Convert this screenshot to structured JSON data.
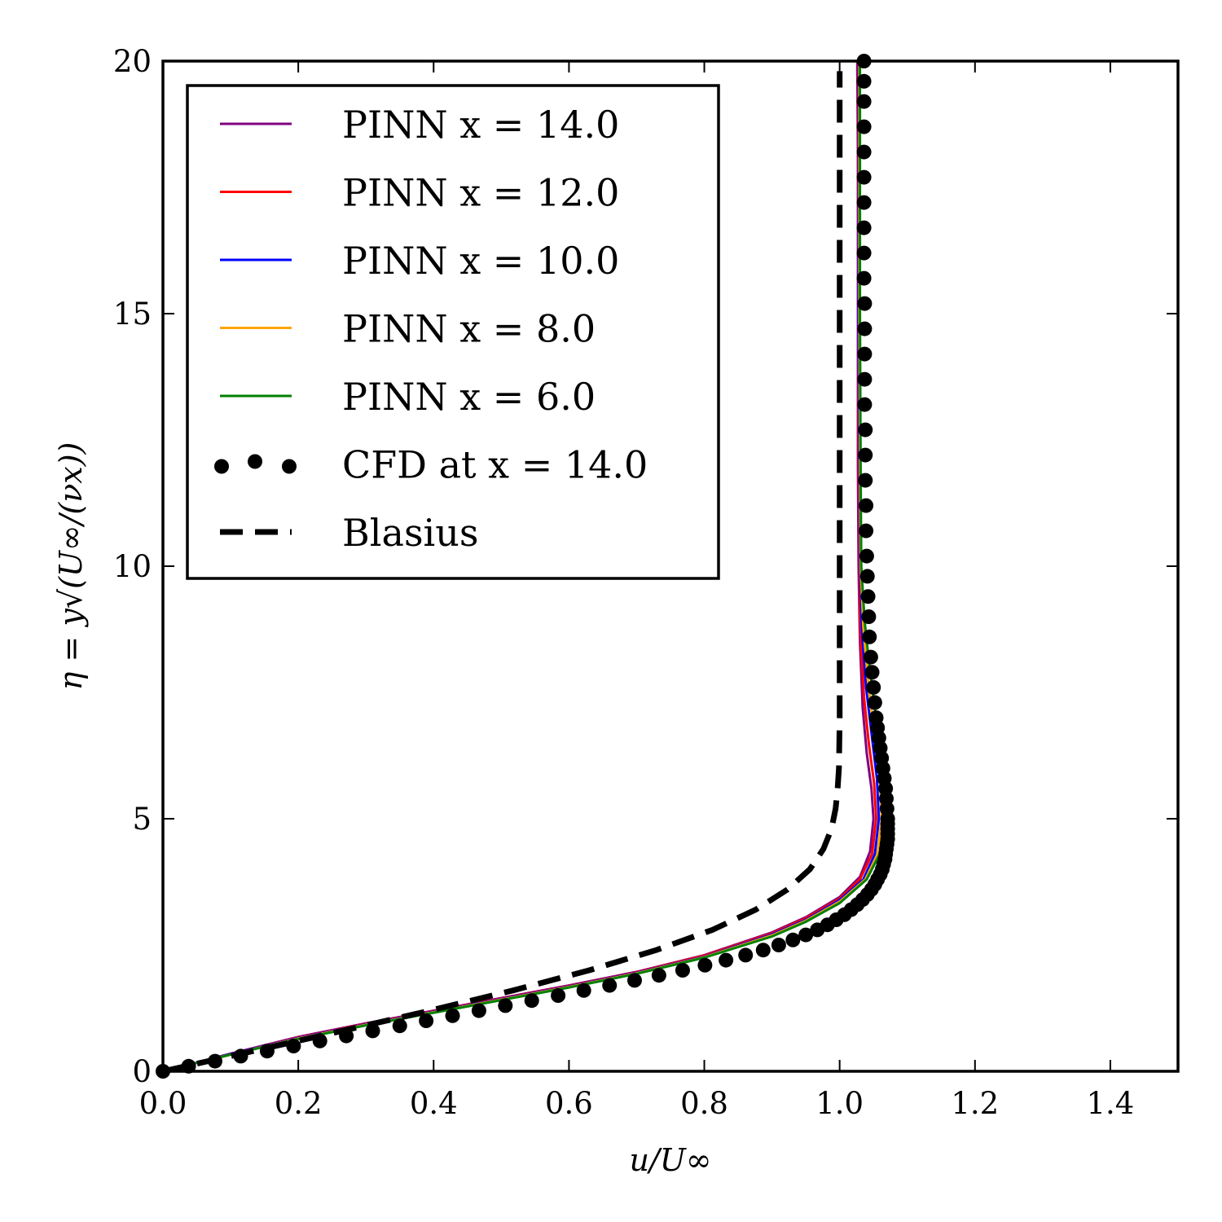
{
  "chart_data": {
    "type": "line",
    "title": "",
    "xlabel": "u/U∞",
    "ylabel": "η = y√(U∞/(νx))",
    "xlim": [
      0.0,
      1.5
    ],
    "ylim": [
      0,
      20
    ],
    "xticks": [
      "0.0",
      "0.2",
      "0.4",
      "0.6",
      "0.8",
      "1.0",
      "1.2",
      "1.4"
    ],
    "xtick_values": [
      0.0,
      0.2,
      0.4,
      0.6,
      0.8,
      1.0,
      1.2,
      1.4
    ],
    "yticks": [
      "0",
      "5",
      "10",
      "15",
      "20"
    ],
    "ytick_values": [
      0,
      5,
      10,
      15,
      20
    ],
    "grid": false,
    "legend_position": "top-left",
    "series": [
      {
        "name": "PINN x = 14.0",
        "color": "#800080",
        "style": "line",
        "points": [
          [
            0.03,
            0.1
          ],
          [
            0.1,
            0.35
          ],
          [
            0.2,
            0.68
          ],
          [
            0.3,
            0.95
          ],
          [
            0.4,
            1.2
          ],
          [
            0.5,
            1.45
          ],
          [
            0.6,
            1.7
          ],
          [
            0.7,
            1.97
          ],
          [
            0.8,
            2.3
          ],
          [
            0.9,
            2.75
          ],
          [
            0.95,
            3.05
          ],
          [
            1.0,
            3.45
          ],
          [
            1.03,
            3.85
          ],
          [
            1.045,
            4.35
          ],
          [
            1.05,
            5.0
          ],
          [
            1.047,
            5.6
          ],
          [
            1.04,
            6.3
          ],
          [
            1.034,
            7.2
          ],
          [
            1.03,
            8.5
          ],
          [
            1.028,
            10.0
          ],
          [
            1.027,
            12.0
          ],
          [
            1.027,
            15.0
          ],
          [
            1.027,
            18.0
          ],
          [
            1.026,
            20.0
          ]
        ]
      },
      {
        "name": "PINN x = 12.0",
        "color": "#ff0000",
        "style": "line",
        "points": [
          [
            0.03,
            0.1
          ],
          [
            0.1,
            0.34
          ],
          [
            0.2,
            0.67
          ],
          [
            0.3,
            0.94
          ],
          [
            0.4,
            1.19
          ],
          [
            0.5,
            1.44
          ],
          [
            0.6,
            1.69
          ],
          [
            0.7,
            1.96
          ],
          [
            0.8,
            2.29
          ],
          [
            0.9,
            2.73
          ],
          [
            0.95,
            3.03
          ],
          [
            1.0,
            3.42
          ],
          [
            1.03,
            3.8
          ],
          [
            1.048,
            4.3
          ],
          [
            1.054,
            5.0
          ],
          [
            1.051,
            5.7
          ],
          [
            1.043,
            6.5
          ],
          [
            1.036,
            7.4
          ],
          [
            1.031,
            8.6
          ],
          [
            1.029,
            10.0
          ],
          [
            1.028,
            12.0
          ],
          [
            1.028,
            15.0
          ],
          [
            1.027,
            18.0
          ],
          [
            1.027,
            20.0
          ]
        ]
      },
      {
        "name": "PINN x = 10.0",
        "color": "#0000ff",
        "style": "line",
        "points": [
          [
            0.03,
            0.1
          ],
          [
            0.1,
            0.34
          ],
          [
            0.2,
            0.66
          ],
          [
            0.3,
            0.93
          ],
          [
            0.4,
            1.18
          ],
          [
            0.5,
            1.43
          ],
          [
            0.6,
            1.68
          ],
          [
            0.7,
            1.95
          ],
          [
            0.8,
            2.27
          ],
          [
            0.9,
            2.71
          ],
          [
            0.95,
            3.0
          ],
          [
            1.0,
            3.39
          ],
          [
            1.035,
            3.8
          ],
          [
            1.052,
            4.3
          ],
          [
            1.058,
            5.0
          ],
          [
            1.055,
            5.8
          ],
          [
            1.047,
            6.7
          ],
          [
            1.039,
            7.6
          ],
          [
            1.033,
            8.7
          ],
          [
            1.03,
            10.0
          ],
          [
            1.029,
            12.0
          ],
          [
            1.028,
            15.0
          ],
          [
            1.028,
            18.0
          ],
          [
            1.028,
            20.0
          ]
        ]
      },
      {
        "name": "PINN x = 8.0",
        "color": "#ffa500",
        "style": "line",
        "points": [
          [
            0.03,
            0.1
          ],
          [
            0.1,
            0.33
          ],
          [
            0.2,
            0.65
          ],
          [
            0.3,
            0.92
          ],
          [
            0.4,
            1.17
          ],
          [
            0.5,
            1.42
          ],
          [
            0.6,
            1.67
          ],
          [
            0.7,
            1.94
          ],
          [
            0.8,
            2.26
          ],
          [
            0.9,
            2.69
          ],
          [
            0.95,
            2.98
          ],
          [
            1.0,
            3.36
          ],
          [
            1.038,
            3.8
          ],
          [
            1.056,
            4.3
          ],
          [
            1.062,
            5.0
          ],
          [
            1.059,
            5.9
          ],
          [
            1.05,
            6.8
          ],
          [
            1.042,
            7.7
          ],
          [
            1.035,
            8.8
          ],
          [
            1.031,
            10.0
          ],
          [
            1.03,
            12.0
          ],
          [
            1.029,
            15.0
          ],
          [
            1.029,
            18.0
          ],
          [
            1.029,
            20.0
          ]
        ]
      },
      {
        "name": "PINN x = 6.0",
        "color": "#008000",
        "style": "line",
        "points": [
          [
            0.03,
            0.1
          ],
          [
            0.1,
            0.33
          ],
          [
            0.2,
            0.64
          ],
          [
            0.3,
            0.91
          ],
          [
            0.4,
            1.16
          ],
          [
            0.5,
            1.41
          ],
          [
            0.6,
            1.66
          ],
          [
            0.7,
            1.93
          ],
          [
            0.8,
            2.25
          ],
          [
            0.9,
            2.67
          ],
          [
            0.95,
            2.96
          ],
          [
            1.0,
            3.33
          ],
          [
            1.04,
            3.8
          ],
          [
            1.059,
            4.3
          ],
          [
            1.066,
            5.0
          ],
          [
            1.063,
            6.0
          ],
          [
            1.054,
            7.0
          ],
          [
            1.045,
            7.9
          ],
          [
            1.037,
            8.9
          ],
          [
            1.032,
            10.0
          ],
          [
            1.031,
            12.0
          ],
          [
            1.03,
            15.0
          ],
          [
            1.03,
            18.0
          ],
          [
            1.03,
            20.0
          ]
        ]
      },
      {
        "name": "CFD at x = 14.0",
        "color": "#000000",
        "style": "markers",
        "points": [
          [
            0.0,
            0.0
          ],
          [
            0.038,
            0.1
          ],
          [
            0.077,
            0.2
          ],
          [
            0.115,
            0.3
          ],
          [
            0.154,
            0.4
          ],
          [
            0.193,
            0.5
          ],
          [
            0.232,
            0.6
          ],
          [
            0.271,
            0.7
          ],
          [
            0.31,
            0.8
          ],
          [
            0.35,
            0.9
          ],
          [
            0.389,
            1.0
          ],
          [
            0.428,
            1.1
          ],
          [
            0.467,
            1.2
          ],
          [
            0.506,
            1.3
          ],
          [
            0.545,
            1.4
          ],
          [
            0.584,
            1.5
          ],
          [
            0.622,
            1.6
          ],
          [
            0.66,
            1.7
          ],
          [
            0.697,
            1.8
          ],
          [
            0.733,
            1.9
          ],
          [
            0.768,
            2.0
          ],
          [
            0.801,
            2.1
          ],
          [
            0.832,
            2.2
          ],
          [
            0.861,
            2.3
          ],
          [
            0.887,
            2.4
          ],
          [
            0.91,
            2.5
          ],
          [
            0.931,
            2.6
          ],
          [
            0.95,
            2.7
          ],
          [
            0.967,
            2.8
          ],
          [
            0.982,
            2.9
          ],
          [
            0.995,
            3.0
          ],
          [
            1.007,
            3.1
          ],
          [
            1.017,
            3.2
          ],
          [
            1.026,
            3.3
          ],
          [
            1.034,
            3.4
          ],
          [
            1.041,
            3.5
          ],
          [
            1.047,
            3.6
          ],
          [
            1.052,
            3.7
          ],
          [
            1.056,
            3.8
          ],
          [
            1.06,
            3.9
          ],
          [
            1.063,
            4.0
          ],
          [
            1.065,
            4.1
          ],
          [
            1.067,
            4.2
          ],
          [
            1.068,
            4.3
          ],
          [
            1.069,
            4.4
          ],
          [
            1.07,
            4.5
          ],
          [
            1.071,
            4.6
          ],
          [
            1.071,
            4.7
          ],
          [
            1.071,
            4.8
          ],
          [
            1.071,
            4.9
          ],
          [
            1.071,
            5.0
          ],
          [
            1.07,
            5.2
          ],
          [
            1.069,
            5.4
          ],
          [
            1.068,
            5.6
          ],
          [
            1.066,
            5.8
          ],
          [
            1.064,
            6.0
          ],
          [
            1.062,
            6.2
          ],
          [
            1.06,
            6.4
          ],
          [
            1.058,
            6.6
          ],
          [
            1.056,
            6.8
          ],
          [
            1.054,
            7.0
          ],
          [
            1.052,
            7.3
          ],
          [
            1.05,
            7.6
          ],
          [
            1.048,
            7.9
          ],
          [
            1.046,
            8.2
          ],
          [
            1.044,
            8.6
          ],
          [
            1.043,
            9.0
          ],
          [
            1.042,
            9.4
          ],
          [
            1.041,
            9.8
          ],
          [
            1.04,
            10.2
          ],
          [
            1.039,
            10.7
          ],
          [
            1.039,
            11.2
          ],
          [
            1.038,
            11.7
          ],
          [
            1.038,
            12.2
          ],
          [
            1.038,
            12.7
          ],
          [
            1.037,
            13.2
          ],
          [
            1.037,
            13.7
          ],
          [
            1.037,
            14.2
          ],
          [
            1.037,
            14.7
          ],
          [
            1.037,
            15.2
          ],
          [
            1.036,
            15.7
          ],
          [
            1.036,
            16.2
          ],
          [
            1.036,
            16.7
          ],
          [
            1.036,
            17.2
          ],
          [
            1.036,
            17.7
          ],
          [
            1.036,
            18.2
          ],
          [
            1.036,
            18.7
          ],
          [
            1.036,
            19.2
          ],
          [
            1.036,
            19.6
          ],
          [
            1.036,
            20.0
          ]
        ]
      },
      {
        "name": "Blasius",
        "color": "#000000",
        "style": "dashed",
        "points": [
          [
            0.0,
            0.0
          ],
          [
            0.133,
            0.4
          ],
          [
            0.265,
            0.8
          ],
          [
            0.394,
            1.2
          ],
          [
            0.517,
            1.6
          ],
          [
            0.63,
            2.0
          ],
          [
            0.729,
            2.4
          ],
          [
            0.812,
            2.8
          ],
          [
            0.876,
            3.2
          ],
          [
            0.923,
            3.6
          ],
          [
            0.956,
            4.0
          ],
          [
            0.976,
            4.4
          ],
          [
            0.988,
            4.8
          ],
          [
            0.994,
            5.2
          ],
          [
            0.997,
            5.6
          ],
          [
            0.999,
            6.0
          ],
          [
            1.0,
            7.0
          ],
          [
            1.0,
            8.0
          ],
          [
            1.0,
            10.0
          ],
          [
            1.0,
            12.0
          ],
          [
            1.0,
            15.0
          ],
          [
            1.0,
            18.0
          ],
          [
            1.0,
            19.8
          ]
        ]
      }
    ],
    "legend": [
      {
        "label": "PINN x = 14.0",
        "color": "#800080",
        "style": "line"
      },
      {
        "label": "PINN x = 12.0",
        "color": "#ff0000",
        "style": "line"
      },
      {
        "label": "PINN x = 10.0",
        "color": "#0000ff",
        "style": "line"
      },
      {
        "label": "PINN x = 8.0",
        "color": "#ffa500",
        "style": "line"
      },
      {
        "label": "PINN x = 6.0",
        "color": "#008000",
        "style": "line"
      },
      {
        "label": "CFD at x = 14.0",
        "color": "#000000",
        "style": "markers"
      },
      {
        "label": "Blasius",
        "color": "#000000",
        "style": "dashed"
      }
    ]
  }
}
